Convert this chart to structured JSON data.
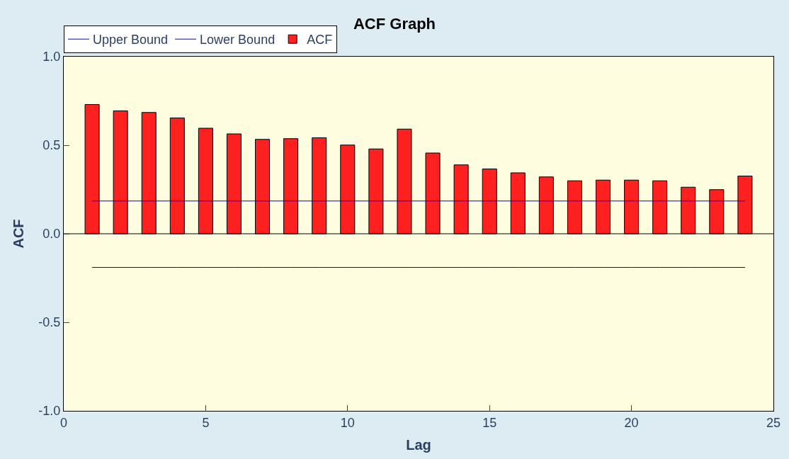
{
  "chart_data": {
    "type": "bar",
    "title": "ACF Graph",
    "xlabel": "Lag",
    "ylabel": "ACF",
    "x": [
      1,
      2,
      3,
      4,
      5,
      6,
      7,
      8,
      9,
      10,
      11,
      12,
      13,
      14,
      15,
      16,
      17,
      18,
      19,
      20,
      21,
      22,
      23,
      24
    ],
    "series": [
      {
        "name": "Upper Bound",
        "type": "line",
        "color": "#0000ff",
        "values": [
          0.185,
          0.185,
          0.185,
          0.185,
          0.185,
          0.185,
          0.185,
          0.185,
          0.185,
          0.185,
          0.185,
          0.185,
          0.185,
          0.185,
          0.185,
          0.185,
          0.185,
          0.185,
          0.185,
          0.185,
          0.185,
          0.185,
          0.185,
          0.185
        ]
      },
      {
        "name": "Lower Bound",
        "type": "line",
        "color": "#0000ff",
        "values": [
          -0.19,
          -0.19,
          -0.19,
          -0.19,
          -0.19,
          -0.19,
          -0.19,
          -0.19,
          -0.19,
          -0.19,
          -0.19,
          -0.19,
          -0.19,
          -0.19,
          -0.19,
          -0.19,
          -0.19,
          -0.19,
          -0.19,
          -0.19,
          -0.19,
          -0.19,
          -0.19,
          -0.19
        ]
      },
      {
        "name": "ACF",
        "color": "#ff2020",
        "values": [
          0.73,
          0.694,
          0.685,
          0.654,
          0.596,
          0.564,
          0.533,
          0.537,
          0.542,
          0.501,
          0.479,
          0.591,
          0.456,
          0.389,
          0.366,
          0.344,
          0.321,
          0.299,
          0.303,
          0.303,
          0.299,
          0.263,
          0.249,
          0.326
        ]
      }
    ],
    "xlim": [
      0,
      25
    ],
    "xticks": [
      0,
      5,
      10,
      15,
      20,
      25
    ],
    "ylim": [
      -1,
      1
    ],
    "yticks": [
      {
        "value": -1,
        "label": "-1.0"
      },
      {
        "value": -0.5,
        "label": "-0.5"
      },
      {
        "value": 0,
        "label": "0.0"
      },
      {
        "value": 0.5,
        "label": "0.5"
      },
      {
        "value": 1,
        "label": "1.0"
      }
    ],
    "ref_lines": [
      {
        "axis": "y",
        "value": 0,
        "color": "#000000"
      }
    ],
    "grid": false,
    "legend": "top left",
    "marker": "none",
    "line_style": "solid"
  }
}
